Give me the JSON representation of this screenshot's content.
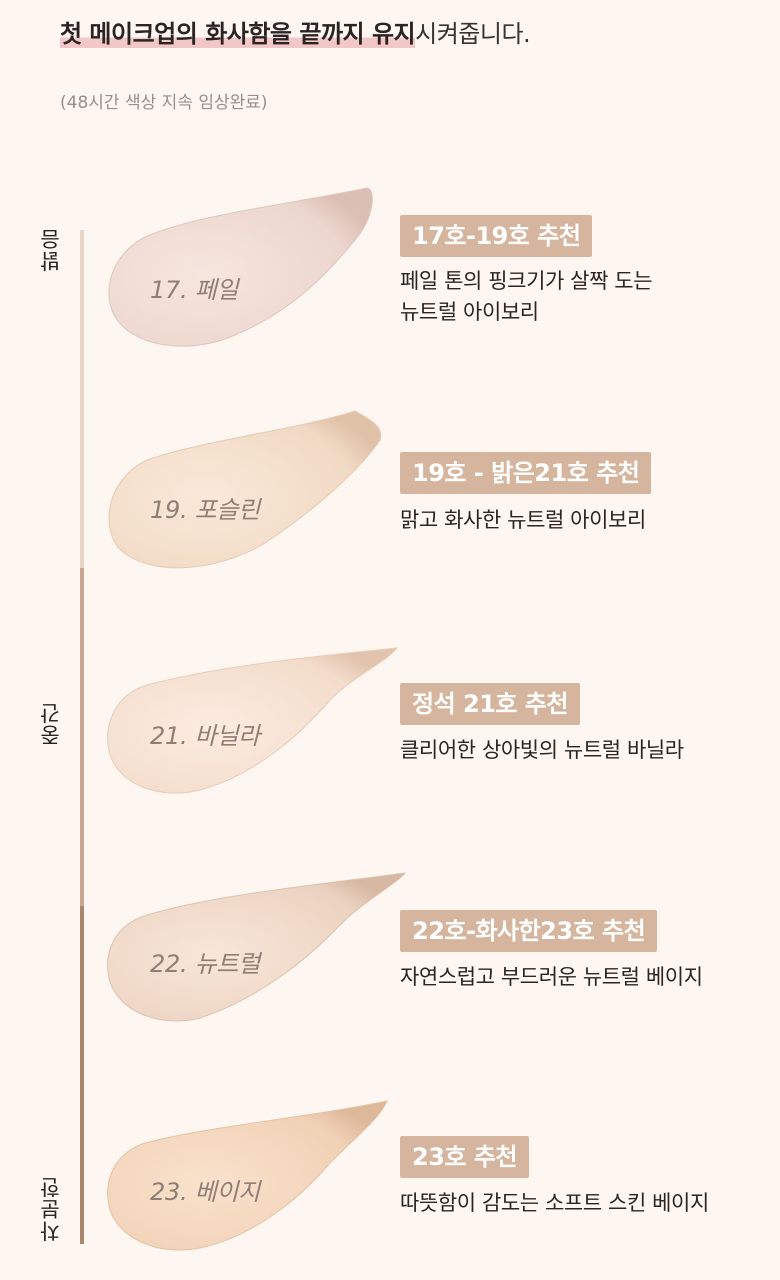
{
  "intro": {
    "headline_highlight": "첫 메이크업의 화사함을 끝까지 유지",
    "headline_rest": "시켜줍니다.",
    "note": "(48시간 색상 지속 임상완료)"
  },
  "scale": {
    "labels": [
      "밝음",
      "중간",
      "차분한"
    ],
    "colors": [
      "#e8d3c4",
      "#c8a892",
      "#a88670"
    ]
  },
  "shades": [
    {
      "label": "17. 페일",
      "badge": "17호-19호 추천",
      "desc_lines": [
        "페일 톤의 핑크기가 살짝 도는",
        "뉴트럴 아이보리"
      ],
      "color": "#efdad2"
    },
    {
      "label": "19. 포슬린",
      "badge": "19호 - 밝은21호 추천",
      "desc_lines": [
        "맑고 화사한 뉴트럴 아이보리"
      ],
      "color": "#f3dcc6"
    },
    {
      "label": "21. 바닐라",
      "badge": "정석 21호 추천",
      "desc_lines": [
        "클리어한 상아빛의 뉴트럴 바닐라"
      ],
      "color": "#f5dfcc"
    },
    {
      "label": "22. 뉴트럴",
      "badge": "22호-화사한23호 추천",
      "desc_lines": [
        "자연스럽고 부드러운 뉴트럴 베이지"
      ],
      "color": "#efd6c4"
    },
    {
      "label": "23. 베이지",
      "badge": "23호 추천",
      "desc_lines": [
        "따뜻함이 감도는 소프트 스킨 베이지"
      ],
      "color": "#f4d5ba"
    }
  ]
}
